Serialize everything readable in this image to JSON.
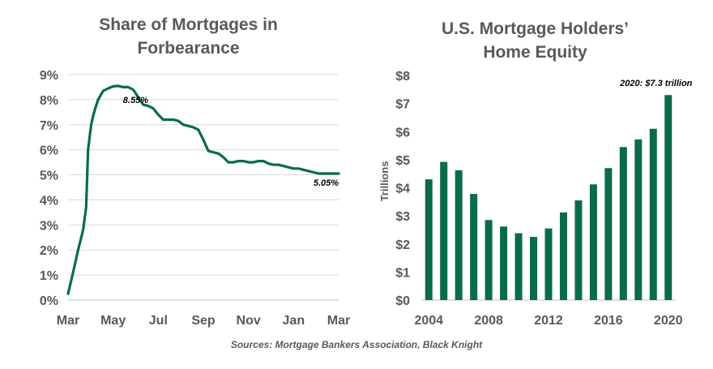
{
  "colors": {
    "series": "#0a6b4a",
    "text": "#595959",
    "grid": "#d9d9d9"
  },
  "source": "Sources: Mortgage Bankers Association,  Black Knight",
  "chart_data": [
    {
      "type": "line",
      "title": "Share of Mortgages in Forbearance",
      "title_lines": [
        "Share of Mortgages in",
        "Forbearance"
      ],
      "xlabel": "",
      "ylabel": "",
      "y_ticks": [
        "0%",
        "1%",
        "2%",
        "3%",
        "4%",
        "5%",
        "6%",
        "7%",
        "8%",
        "9%"
      ],
      "x_tick_labels": [
        "Mar",
        "May",
        "Jul",
        "Sep",
        "Nov",
        "Jan",
        "Mar"
      ],
      "ylim": [
        0,
        9
      ],
      "grid": true,
      "x_unit": "weeks",
      "series": [
        {
          "x": [
            0,
            1,
            2,
            3,
            3.6,
            4,
            4.6,
            5,
            5.5,
            6,
            7,
            8,
            9,
            10,
            11,
            12,
            13,
            14,
            15,
            16,
            17,
            18,
            19,
            20,
            21,
            22,
            23,
            24,
            25,
            26,
            27,
            28,
            29,
            30,
            31,
            32,
            33,
            34,
            35,
            36,
            37,
            38,
            39,
            40,
            41,
            42,
            43,
            44,
            45,
            46,
            47,
            48,
            49,
            50,
            51,
            52,
            53,
            54
          ],
          "y": [
            0.25,
            1.1,
            2.0,
            2.8,
            3.7,
            6.0,
            7.0,
            7.35,
            7.7,
            8.0,
            8.35,
            8.45,
            8.53,
            8.55,
            8.5,
            8.5,
            8.4,
            8.1,
            7.8,
            7.75,
            7.65,
            7.4,
            7.2,
            7.2,
            7.2,
            7.15,
            7.0,
            6.95,
            6.9,
            6.8,
            6.4,
            5.95,
            5.9,
            5.85,
            5.7,
            5.5,
            5.5,
            5.55,
            5.55,
            5.5,
            5.5,
            5.55,
            5.55,
            5.45,
            5.4,
            5.4,
            5.35,
            5.3,
            5.25,
            5.25,
            5.2,
            5.15,
            5.1,
            5.05,
            5.05,
            5.05,
            5.05,
            5.05
          ]
        }
      ],
      "annotations": [
        {
          "text": "8.55%",
          "x": 13,
          "y": 8.55
        },
        {
          "text": "5.05%",
          "x": 51,
          "y": 5.05
        }
      ]
    },
    {
      "type": "bar",
      "title": "U.S. Mortgage Holders’ Home Equity",
      "title_lines": [
        "U.S. Mortgage Holders’",
        "Home Equity"
      ],
      "xlabel": "",
      "ylabel": "Trillions",
      "categories": [
        2004,
        2005,
        2006,
        2007,
        2008,
        2009,
        2010,
        2011,
        2012,
        2013,
        2014,
        2015,
        2016,
        2017,
        2018,
        2019,
        2020
      ],
      "x_tick_labels": [
        "2004",
        "2008",
        "2012",
        "2016",
        "2020"
      ],
      "values": [
        4.3,
        4.92,
        4.62,
        3.78,
        2.85,
        2.62,
        2.38,
        2.25,
        2.55,
        3.12,
        3.55,
        4.12,
        4.7,
        5.45,
        5.72,
        6.1,
        7.3
      ],
      "y_ticks": [
        "$0",
        "$1",
        "$2",
        "$3",
        "$4",
        "$5",
        "$6",
        "$7",
        "$8"
      ],
      "ylim": [
        0,
        8
      ],
      "grid": false,
      "annotations": [
        {
          "text": "2020: $7.3 trillion",
          "category": 2020,
          "value": 7.3
        }
      ]
    }
  ]
}
